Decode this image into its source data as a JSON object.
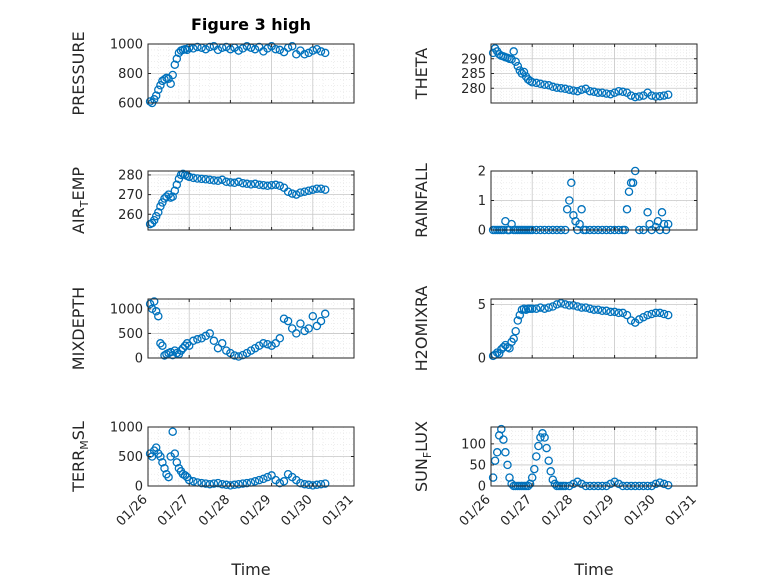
{
  "figure": {
    "title": "Figure 3 high",
    "xlabel": "Time",
    "xticks": [
      "01/26",
      "01/27",
      "01/28",
      "01/29",
      "01/30",
      "01/31"
    ]
  },
  "colors": {
    "marker": "#0072BD",
    "axes": "#262626",
    "grid": "#c7c7c7",
    "minor_grid": "#e3e3e3"
  },
  "chart_data": [
    {
      "type": "scatter",
      "id": "pressure",
      "ylabel": "PRESSURE",
      "ylim": [
        600,
        1000
      ],
      "yticks": [
        600,
        800,
        1000
      ],
      "x": [
        0.05,
        0.1,
        0.15,
        0.2,
        0.25,
        0.3,
        0.35,
        0.4,
        0.45,
        0.5,
        0.55,
        0.6,
        0.65,
        0.7,
        0.75,
        0.8,
        0.85,
        0.9,
        0.95,
        1.0,
        1.1,
        1.2,
        1.3,
        1.4,
        1.5,
        1.6,
        1.7,
        1.8,
        1.9,
        2.0,
        2.1,
        2.2,
        2.3,
        2.4,
        2.5,
        2.6,
        2.7,
        2.8,
        2.9,
        3.0,
        3.1,
        3.2,
        3.3,
        3.4,
        3.5,
        3.6,
        3.7,
        3.8,
        3.9,
        4.0,
        4.1,
        4.2,
        4.3
      ],
      "y": [
        610,
        600,
        625,
        650,
        690,
        720,
        750,
        760,
        770,
        765,
        730,
        790,
        860,
        900,
        940,
        955,
        960,
        965,
        960,
        975,
        970,
        980,
        975,
        965,
        980,
        985,
        960,
        975,
        980,
        965,
        975,
        955,
        970,
        985,
        975,
        965,
        980,
        950,
        970,
        985,
        965,
        960,
        945,
        975,
        985,
        930,
        955,
        930,
        940,
        955,
        965,
        950,
        940
      ]
    },
    {
      "type": "scatter",
      "id": "theta",
      "ylabel": "THETA",
      "ylim": [
        275,
        295
      ],
      "yticks": [
        280,
        285,
        290
      ],
      "x": [
        0.05,
        0.1,
        0.15,
        0.2,
        0.25,
        0.3,
        0.35,
        0.4,
        0.45,
        0.5,
        0.55,
        0.6,
        0.65,
        0.7,
        0.75,
        0.8,
        0.85,
        0.9,
        0.95,
        1.0,
        1.1,
        1.2,
        1.3,
        1.4,
        1.5,
        1.6,
        1.7,
        1.8,
        1.9,
        2.0,
        2.1,
        2.2,
        2.3,
        2.4,
        2.5,
        2.6,
        2.7,
        2.8,
        2.9,
        3.0,
        3.1,
        3.2,
        3.3,
        3.4,
        3.5,
        3.6,
        3.7,
        3.8,
        3.9,
        4.0,
        4.1,
        4.2,
        4.3
      ],
      "y": [
        292,
        293.5,
        292.5,
        291.5,
        291,
        290.8,
        290.5,
        290.3,
        290,
        289.8,
        292.5,
        289,
        287.5,
        286,
        285,
        285.5,
        284,
        283,
        282.5,
        282,
        281.8,
        281.5,
        281.2,
        281,
        280.5,
        280.2,
        280,
        279.8,
        279.5,
        279.2,
        279,
        279.5,
        279.8,
        279,
        278.8,
        278.5,
        278.5,
        278.2,
        278,
        278.5,
        279,
        278.8,
        278.5,
        277.5,
        277,
        277.2,
        277.5,
        278.5,
        277.5,
        277.2,
        277.3,
        277.5,
        277.8
      ]
    },
    {
      "type": "scatter",
      "id": "air_temp",
      "ylabel": "AIR_TEMP",
      "ylim": [
        252,
        282
      ],
      "yticks": [
        260,
        270,
        280
      ],
      "x": [
        0.05,
        0.1,
        0.15,
        0.2,
        0.25,
        0.3,
        0.35,
        0.4,
        0.45,
        0.5,
        0.55,
        0.6,
        0.65,
        0.7,
        0.75,
        0.8,
        0.85,
        0.9,
        0.95,
        1.0,
        1.1,
        1.2,
        1.3,
        1.4,
        1.5,
        1.6,
        1.7,
        1.8,
        1.9,
        2.0,
        2.1,
        2.2,
        2.3,
        2.4,
        2.5,
        2.6,
        2.7,
        2.8,
        2.9,
        3.0,
        3.1,
        3.2,
        3.3,
        3.4,
        3.5,
        3.6,
        3.7,
        3.8,
        3.9,
        4.0,
        4.1,
        4.2,
        4.3
      ],
      "y": [
        255,
        255.5,
        257,
        259,
        261,
        264,
        266,
        268,
        269,
        270,
        268.5,
        269,
        272,
        275,
        278,
        280,
        280.5,
        280,
        279.5,
        279,
        278.5,
        278.2,
        278,
        277.8,
        277.5,
        277.2,
        277,
        277.5,
        276.5,
        276.2,
        276,
        276.5,
        275.8,
        275.5,
        275.2,
        275.5,
        275,
        274.8,
        274.5,
        274.8,
        275,
        274.5,
        273.5,
        271.5,
        270.5,
        270,
        271,
        271.5,
        272,
        272.5,
        273,
        273,
        272.5
      ]
    },
    {
      "type": "scatter",
      "id": "rainfall",
      "ylabel": "RAINFALL",
      "ylim": [
        0,
        2
      ],
      "yticks": [
        0,
        1,
        2
      ],
      "x": [
        0.05,
        0.1,
        0.15,
        0.2,
        0.25,
        0.3,
        0.35,
        0.4,
        0.45,
        0.5,
        0.55,
        0.6,
        0.65,
        0.7,
        0.75,
        0.8,
        0.85,
        0.9,
        0.95,
        1.0,
        1.1,
        1.2,
        1.3,
        1.4,
        1.5,
        1.6,
        1.7,
        1.8,
        1.85,
        1.9,
        1.95,
        2.0,
        2.05,
        2.1,
        2.15,
        2.2,
        2.25,
        2.3,
        2.4,
        2.5,
        2.6,
        2.7,
        2.8,
        2.9,
        3.0,
        3.1,
        3.2,
        3.25,
        3.3,
        3.35,
        3.4,
        3.45,
        3.5,
        3.6,
        3.7,
        3.8,
        3.85,
        3.9,
        4.0,
        4.05,
        4.1,
        4.15,
        4.2,
        4.25,
        4.3
      ],
      "y": [
        0,
        0,
        0,
        0,
        0,
        0,
        0.3,
        0,
        0,
        0.2,
        0,
        0,
        0,
        0,
        0,
        0,
        0,
        0,
        0,
        0,
        0,
        0,
        0,
        0,
        0,
        0,
        0,
        0,
        0.7,
        1.0,
        1.6,
        0.5,
        0.3,
        0,
        0.2,
        0.7,
        0,
        0,
        0,
        0,
        0,
        0,
        0,
        0,
        0,
        0,
        0,
        0,
        0.7,
        1.3,
        1.6,
        1.6,
        2.0,
        0,
        0,
        0.6,
        0.2,
        0,
        0.1,
        0.3,
        0,
        0.6,
        0.2,
        0,
        0.2
      ]
    },
    {
      "type": "scatter",
      "id": "mixdepth",
      "ylabel": "MIXDEPTH",
      "ylim": [
        0,
        1200
      ],
      "yticks": [
        0,
        500,
        1000
      ],
      "x": [
        0.05,
        0.1,
        0.15,
        0.2,
        0.25,
        0.3,
        0.35,
        0.4,
        0.45,
        0.5,
        0.55,
        0.6,
        0.65,
        0.7,
        0.75,
        0.8,
        0.85,
        0.9,
        0.95,
        1.0,
        1.1,
        1.2,
        1.3,
        1.4,
        1.5,
        1.6,
        1.7,
        1.8,
        1.9,
        2.0,
        2.1,
        2.2,
        2.3,
        2.4,
        2.5,
        2.6,
        2.7,
        2.8,
        2.9,
        3.0,
        3.1,
        3.2,
        3.3,
        3.4,
        3.5,
        3.6,
        3.7,
        3.8,
        3.9,
        4.0,
        4.1,
        4.2,
        4.3
      ],
      "y": [
        1100,
        1000,
        1150,
        950,
        850,
        300,
        250,
        50,
        80,
        100,
        120,
        60,
        150,
        100,
        80,
        150,
        200,
        250,
        300,
        250,
        350,
        380,
        400,
        450,
        500,
        350,
        200,
        300,
        150,
        100,
        50,
        30,
        60,
        100,
        150,
        200,
        250,
        300,
        280,
        250,
        300,
        400,
        800,
        750,
        600,
        500,
        700,
        550,
        600,
        850,
        650,
        750,
        900
      ]
    },
    {
      "type": "scatter",
      "id": "h2omixra",
      "ylabel": "H2OMIXRA",
      "ylim": [
        0,
        5.5
      ],
      "yticks": [
        0,
        5
      ],
      "x": [
        0.05,
        0.1,
        0.15,
        0.2,
        0.25,
        0.3,
        0.35,
        0.4,
        0.45,
        0.5,
        0.55,
        0.6,
        0.65,
        0.7,
        0.75,
        0.8,
        0.85,
        0.9,
        0.95,
        1.0,
        1.1,
        1.2,
        1.3,
        1.4,
        1.5,
        1.6,
        1.7,
        1.8,
        1.9,
        2.0,
        2.1,
        2.2,
        2.3,
        2.4,
        2.5,
        2.6,
        2.7,
        2.8,
        2.9,
        3.0,
        3.1,
        3.2,
        3.3,
        3.4,
        3.5,
        3.6,
        3.7,
        3.8,
        3.9,
        4.0,
        4.1,
        4.2,
        4.3
      ],
      "y": [
        0.2,
        0.3,
        0.5,
        0.4,
        0.8,
        1.0,
        1.2,
        1.0,
        0.9,
        1.5,
        1.8,
        2.5,
        3.5,
        4.0,
        4.5,
        4.6,
        4.5,
        4.6,
        4.6,
        4.6,
        4.6,
        4.7,
        4.6,
        4.7,
        4.8,
        5.0,
        5.1,
        5.0,
        4.9,
        4.9,
        4.8,
        4.7,
        4.7,
        4.6,
        4.5,
        4.5,
        4.4,
        4.4,
        4.3,
        4.3,
        4.2,
        4.2,
        4.0,
        3.5,
        3.3,
        3.6,
        3.8,
        4.0,
        4.1,
        4.2,
        4.2,
        4.1,
        4.0
      ]
    },
    {
      "type": "scatter",
      "id": "terr_msl",
      "ylabel": "TERR_MSL",
      "ylim": [
        0,
        1000
      ],
      "yticks": [
        0,
        500,
        1000
      ],
      "x": [
        0.05,
        0.1,
        0.15,
        0.2,
        0.25,
        0.3,
        0.35,
        0.4,
        0.45,
        0.5,
        0.55,
        0.6,
        0.65,
        0.7,
        0.75,
        0.8,
        0.85,
        0.9,
        0.95,
        1.0,
        1.1,
        1.2,
        1.3,
        1.4,
        1.5,
        1.6,
        1.7,
        1.8,
        1.9,
        2.0,
        2.1,
        2.2,
        2.3,
        2.4,
        2.5,
        2.6,
        2.7,
        2.8,
        2.9,
        3.0,
        3.1,
        3.2,
        3.3,
        3.4,
        3.5,
        3.6,
        3.7,
        3.8,
        3.9,
        4.0,
        4.1,
        4.2,
        4.3
      ],
      "y": [
        550,
        500,
        600,
        650,
        550,
        500,
        400,
        300,
        200,
        150,
        500,
        920,
        550,
        400,
        300,
        250,
        200,
        180,
        150,
        100,
        80,
        60,
        50,
        40,
        30,
        40,
        50,
        30,
        20,
        10,
        20,
        30,
        40,
        50,
        60,
        80,
        100,
        120,
        150,
        180,
        100,
        50,
        80,
        200,
        150,
        100,
        50,
        30,
        20,
        10,
        20,
        30,
        40
      ]
    },
    {
      "type": "scatter",
      "id": "sun_flux",
      "ylabel": "SUN_FLUX",
      "ylim": [
        0,
        140
      ],
      "yticks": [
        0,
        50,
        100
      ],
      "x": [
        0.05,
        0.1,
        0.15,
        0.2,
        0.25,
        0.3,
        0.35,
        0.4,
        0.45,
        0.5,
        0.55,
        0.6,
        0.65,
        0.7,
        0.75,
        0.8,
        0.85,
        0.9,
        0.95,
        1.0,
        1.05,
        1.1,
        1.15,
        1.2,
        1.25,
        1.3,
        1.35,
        1.4,
        1.45,
        1.5,
        1.55,
        1.6,
        1.65,
        1.7,
        1.75,
        1.8,
        1.9,
        2.0,
        2.1,
        2.2,
        2.3,
        2.4,
        2.5,
        2.6,
        2.7,
        2.8,
        2.9,
        3.0,
        3.1,
        3.2,
        3.3,
        3.4,
        3.5,
        3.6,
        3.7,
        3.8,
        3.9,
        4.0,
        4.1,
        4.2,
        4.3
      ],
      "y": [
        20,
        60,
        80,
        120,
        135,
        110,
        80,
        50,
        20,
        5,
        0,
        0,
        0,
        0,
        0,
        0,
        0,
        0,
        5,
        20,
        40,
        70,
        95,
        115,
        125,
        115,
        90,
        60,
        35,
        15,
        5,
        0,
        0,
        0,
        0,
        0,
        0,
        5,
        10,
        5,
        0,
        0,
        0,
        0,
        0,
        0,
        5,
        10,
        5,
        0,
        0,
        0,
        0,
        0,
        0,
        0,
        0,
        5,
        8,
        5,
        2
      ]
    }
  ]
}
